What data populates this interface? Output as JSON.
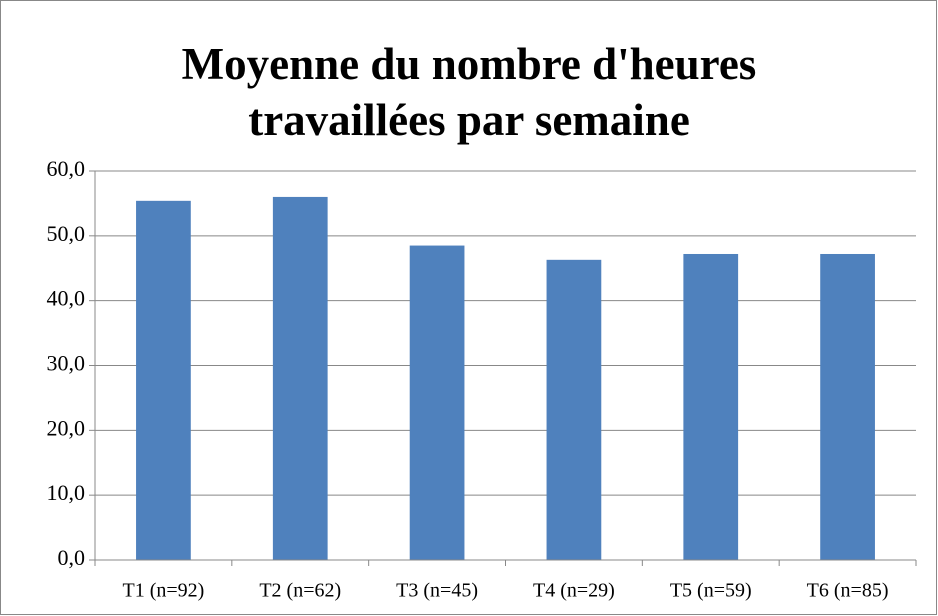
{
  "chart_data": {
    "type": "bar",
    "title": "Moyenne du nombre d'heures travaillées par semaine",
    "categories": [
      "T1 (n=92)",
      "T2 (n=62)",
      "T3 (n=45)",
      "T4 (n=29)",
      "T5 (n=59)",
      "T6 (n=85)"
    ],
    "values": [
      55.4,
      56.0,
      48.5,
      46.3,
      47.2,
      47.2
    ],
    "color": "#4f81bd",
    "ylim": [
      0,
      60
    ],
    "yticks": [
      {
        "value": 0,
        "label": "0,0"
      },
      {
        "value": 10,
        "label": "10,0"
      },
      {
        "value": 20,
        "label": "20,0"
      },
      {
        "value": 30,
        "label": "30,0"
      },
      {
        "value": 40,
        "label": "40,0"
      },
      {
        "value": 50,
        "label": "50,0"
      },
      {
        "value": 60,
        "label": "60,0"
      }
    ],
    "grid": true
  }
}
